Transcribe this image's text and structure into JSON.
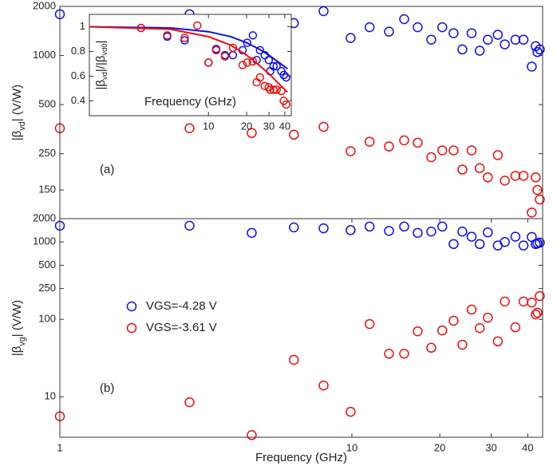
{
  "chart_data": [
    {
      "type": "scatter",
      "annotation": "(a)",
      "ylabel": [
        "|β",
        "vd",
        "| (V/W)"
      ],
      "xlog": true,
      "ylog": true,
      "xlim": [
        1,
        45
      ],
      "ylim": [
        100,
        2000
      ],
      "yticks": [
        150,
        250,
        500,
        1000,
        2000
      ],
      "x": [
        1,
        2.78,
        4.54,
        6.33,
        8.0,
        9.9,
        11.5,
        13.4,
        15.1,
        16.8,
        18.7,
        20.4,
        22.3,
        23.9,
        25.7,
        27.4,
        29.2,
        31.6,
        33.4,
        36.3,
        38.7,
        41.3,
        42.6,
        43.2,
        44
      ],
      "series": [
        {
          "color": "#1010e0",
          "values": [
            1790,
            1790,
            1654,
            1580,
            1870,
            1280,
            1490,
            1400,
            1670,
            1490,
            1250,
            1490,
            1370,
            1090,
            1370,
            1070,
            1250,
            1340,
            1170,
            1250,
            1250,
            855,
            1140,
            1050,
            1090
          ]
        },
        {
          "color": "#e81010",
          "values": [
            358,
            358,
            335,
            327,
            365,
            259,
            296,
            277,
            302,
            292,
            238,
            262,
            262,
            200,
            262,
            204,
            179,
            245,
            171,
            183,
            183,
            109,
            179,
            150,
            131
          ]
        }
      ]
    },
    {
      "type": "scatter",
      "annotation": "(b)",
      "xlabel": "Frequency (GHz)",
      "ylabel": [
        "|β",
        "vg",
        "| (V/W)"
      ],
      "xlog": true,
      "ylog": true,
      "legend": "left",
      "xlim": [
        1,
        45
      ],
      "ylim": [
        3,
        2000
      ],
      "xticks": [
        1,
        10,
        20,
        30,
        40
      ],
      "yticks": [
        10,
        100,
        250,
        500,
        1000,
        2000
      ],
      "x": [
        1,
        2.78,
        4.54,
        6.33,
        8.0,
        9.9,
        11.5,
        13.4,
        15.1,
        16.8,
        18.7,
        20.4,
        22.3,
        23.9,
        25.7,
        27.4,
        29.2,
        31.6,
        33.4,
        36.3,
        38.7,
        41.3,
        42.6,
        43.2,
        44
      ],
      "series": [
        {
          "name": "VGS=-4.28 V",
          "color": "#1010e0",
          "values": [
            1620,
            1620,
            1310,
            1540,
            1500,
            1420,
            1580,
            1390,
            1580,
            1310,
            1360,
            1580,
            940,
            1360,
            1170,
            940,
            1330,
            900,
            1000,
            1170,
            900,
            1160,
            940,
            960,
            980
          ]
        },
        {
          "name": "VGS=-3.61 V",
          "color": "#e81010",
          "values": [
            5.6,
            8.5,
            3.2,
            30,
            14,
            6.4,
            87,
            36,
            36,
            70,
            43,
            72,
            96,
            47,
            134,
            77,
            105,
            52,
            170,
            79,
            170,
            165,
            116,
            122,
            200
          ]
        }
      ]
    },
    {
      "type": "scatter",
      "xlabel": "Frequency (GHz)",
      "ylabel": [
        "|β",
        "vd",
        "|/|β",
        "vd0",
        "|"
      ],
      "xlog": true,
      "ylog": false,
      "xlim": [
        1.15,
        45
      ],
      "ylim": [
        0.28,
        1.1
      ],
      "xticks": [
        10,
        20,
        30,
        40
      ],
      "yticks": [
        0.4,
        0.6,
        0.8,
        1
      ],
      "series": [
        {
          "color": "#1010e0",
          "x": [
            2.94,
            4.73,
            6.49,
            10,
            11.5,
            13.5,
            15.6,
            18.6,
            20.2,
            22.4,
            24.0,
            25.5,
            27.8,
            29.9,
            30.7,
            32.6,
            34.5,
            37.6,
            39.3,
            41.0
          ],
          "values": [
            0.99,
            0.92,
            0.89,
            0.71,
            0.82,
            0.77,
            0.77,
            0.81,
            0.87,
            0.93,
            0.73,
            0.81,
            0.77,
            0.73,
            0.64,
            0.68,
            0.68,
            0.64,
            0.61,
            0.59
          ]
        },
        {
          "color": "#e81010",
          "x": [
            2.94,
            4.73,
            6.49,
            8.17,
            10,
            11.5,
            13.5,
            15.6,
            18.6,
            20.2,
            22.4,
            24.0,
            25.5,
            27.8,
            29.9,
            30.7,
            32.6,
            34.5,
            37.6,
            39.3,
            41.0
          ],
          "values": [
            0.99,
            0.93,
            0.91,
            1.01,
            0.71,
            0.81,
            0.76,
            0.83,
            0.69,
            0.71,
            0.72,
            0.55,
            0.59,
            0.52,
            0.51,
            0.49,
            0.49,
            0.49,
            0.48,
            0.4,
            0.37
          ]
        },
        {
          "style": "line",
          "color": "#1010e0",
          "x": [
            1.15,
            5,
            10,
            15,
            20,
            25,
            30,
            35,
            42
          ],
          "values": [
            1.0,
            0.99,
            0.96,
            0.92,
            0.87,
            0.82,
            0.77,
            0.72,
            0.66
          ]
        },
        {
          "style": "line",
          "color": "#e81010",
          "x": [
            1.15,
            5,
            10,
            15,
            20,
            25,
            30,
            35,
            42
          ],
          "values": [
            1.0,
            0.98,
            0.92,
            0.85,
            0.77,
            0.69,
            0.62,
            0.55,
            0.47
          ]
        }
      ]
    }
  ]
}
